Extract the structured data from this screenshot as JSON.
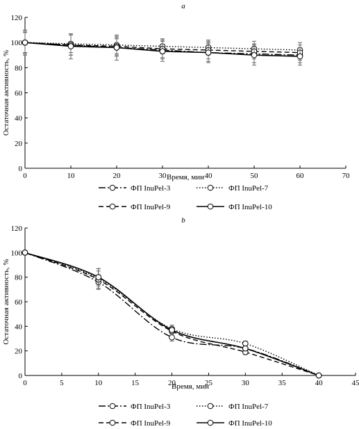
{
  "chart_data": [
    {
      "type": "line",
      "panel_label": "a",
      "xlabel": "Время, мин",
      "ylabel": "Остаточная активность, %",
      "xlim": [
        0,
        70
      ],
      "ylim": [
        0,
        120
      ],
      "xticks": [
        0,
        10,
        20,
        30,
        40,
        50,
        60,
        70
      ],
      "yticks": [
        0,
        20,
        40,
        60,
        80,
        100,
        120
      ],
      "grid": false,
      "legend_position": "bottom",
      "x": [
        0,
        10,
        20,
        30,
        40,
        50,
        60
      ],
      "series": [
        {
          "name": "ФП InuPel-3",
          "style": "dash-dot",
          "values": [
            100,
            98,
            96,
            94,
            92,
            91,
            90
          ],
          "errors": [
            8,
            8,
            7,
            7,
            7,
            7,
            6
          ]
        },
        {
          "name": "ФП InuPel-7",
          "style": "dotted",
          "values": [
            100,
            99,
            98,
            97,
            96,
            95,
            94
          ],
          "errors": [
            8,
            7,
            7,
            6,
            6,
            6,
            6
          ]
        },
        {
          "name": "ФП InuPel-9",
          "style": "dashed",
          "values": [
            100,
            98,
            97,
            95,
            94,
            93,
            92
          ],
          "errors": [
            9,
            8,
            7,
            7,
            7,
            6,
            6
          ]
        },
        {
          "name": "ФП InuPel-10",
          "style": "solid",
          "values": [
            100,
            97,
            96,
            93,
            92,
            90,
            89
          ],
          "errors": [
            10,
            10,
            10,
            8,
            8,
            8,
            7
          ]
        }
      ]
    },
    {
      "type": "line",
      "panel_label": "b",
      "xlabel": "Время, мин",
      "ylabel": "Остаточная активность, %",
      "xlim": [
        0,
        45
      ],
      "ylim": [
        0,
        120
      ],
      "xticks": [
        0,
        5,
        10,
        15,
        20,
        25,
        30,
        35,
        40,
        45
      ],
      "yticks": [
        0,
        20,
        40,
        60,
        80,
        100,
        120
      ],
      "grid": false,
      "legend_position": "bottom",
      "x": [
        0,
        10,
        20,
        30,
        40
      ],
      "series": [
        {
          "name": "ФП InuPel-3",
          "style": "dash-dot",
          "values": [
            100,
            76,
            31,
            22,
            0
          ],
          "errors": [
            0,
            6,
            3,
            2,
            0
          ]
        },
        {
          "name": "ФП InuPel-7",
          "style": "dotted",
          "values": [
            100,
            79,
            38,
            26,
            0
          ],
          "errors": [
            0,
            8,
            3,
            2,
            0
          ]
        },
        {
          "name": "ФП InuPel-9",
          "style": "dashed",
          "values": [
            100,
            78,
            36,
            19,
            0
          ],
          "errors": [
            0,
            7,
            3,
            2,
            0
          ]
        },
        {
          "name": "ФП InuPel-10",
          "style": "solid",
          "values": [
            100,
            80,
            37,
            22,
            0
          ],
          "errors": [
            0,
            7,
            4,
            2,
            0
          ]
        }
      ]
    }
  ]
}
